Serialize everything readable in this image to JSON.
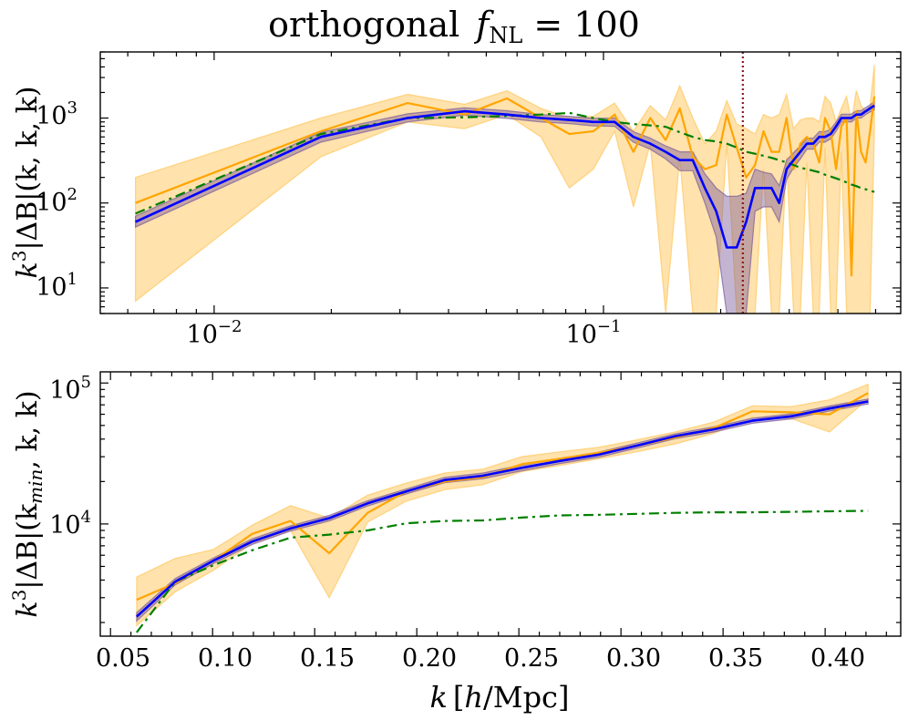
{
  "figure": {
    "title": "orthogonal",
    "title_symbol": "f",
    "title_sub": "NL",
    "title_rhs": " = 100"
  },
  "colors": {
    "measurement": "#ffa500",
    "measurement_band": "#ffc65a",
    "model": "#0000ff",
    "model_band": "#7a5a9a",
    "theory": "#007f00",
    "kmax_marker": "#8b1a1a"
  },
  "chart_data": [
    {
      "type": "line",
      "panel": "top",
      "xscale": "log",
      "yscale": "log",
      "xlim": [
        0.0051,
        0.58
      ],
      "ylim": [
        5,
        6000
      ],
      "x_ticks": [
        {
          "label_base": "10",
          "label_exp": "−2",
          "value": 0.01
        },
        {
          "label_base": "10",
          "label_exp": "−1",
          "value": 0.1
        }
      ],
      "y_ticks": [
        {
          "label_base": "10",
          "label_exp": "1",
          "value": 10
        },
        {
          "label_base": "10",
          "label_exp": "2",
          "value": 100
        },
        {
          "label_base": "10",
          "label_exp": "3",
          "value": 1000
        }
      ],
      "ylabel": {
        "pre": "k",
        "pre_sup": "3",
        "body": "|ΔB|(k, k, k)"
      },
      "vline_x": 0.228,
      "x": [
        0.00628,
        0.0188,
        0.0314,
        0.044,
        0.0565,
        0.0691,
        0.0817,
        0.0942,
        0.1068,
        0.1194,
        0.1319,
        0.1445,
        0.1571,
        0.1696,
        0.1822,
        0.1948,
        0.2073,
        0.2199,
        0.2325,
        0.245,
        0.2576,
        0.2702,
        0.2827,
        0.2953,
        0.3079,
        0.3204,
        0.333,
        0.3456,
        0.3581,
        0.3707,
        0.3833,
        0.3958,
        0.4084,
        0.421,
        0.4335,
        0.4461,
        0.4587,
        0.4712,
        0.4838,
        0.4964
      ],
      "series": [
        {
          "name": "measurement",
          "values": [
            100,
            700,
            1500,
            1100,
            1700,
            1000,
            650,
            700,
            1100,
            400,
            1000,
            550,
            1300,
            350,
            250,
            280,
            1100,
            450,
            200,
            280,
            700,
            400,
            400,
            1000,
            250,
            500,
            600,
            500,
            300,
            1000,
            700,
            250,
            800,
            1000,
            14,
            1200,
            400,
            300,
            700,
            1800
          ],
          "lower": [
            7,
            350,
            900,
            750,
            1100,
            600,
            150,
            250,
            700,
            90,
            500,
            5,
            350,
            5,
            5,
            5,
            500,
            5,
            5,
            5,
            250,
            5,
            5,
            350,
            5,
            5,
            300,
            5,
            5,
            450,
            5,
            5,
            400,
            5,
            5,
            5,
            5,
            5,
            5,
            700
          ],
          "upper": [
            200,
            1000,
            1900,
            1450,
            2100,
            1300,
            1000,
            1050,
            1500,
            700,
            1400,
            950,
            2400,
            1000,
            500,
            700,
            1600,
            850,
            750,
            650,
            1100,
            1000,
            1100,
            1900,
            750,
            950,
            1000,
            1000,
            900,
            1800,
            1500,
            900,
            1300,
            1800,
            900,
            2100,
            1400,
            1200,
            1400,
            4200
          ]
        },
        {
          "name": "model",
          "values": [
            60,
            600,
            1000,
            1200,
            1100,
            1000,
            950,
            900,
            900,
            600,
            500,
            400,
            320,
            320,
            150,
            80,
            30,
            30,
            60,
            150,
            150,
            150,
            100,
            250,
            320,
            400,
            500,
            500,
            600,
            600,
            650,
            800,
            1000,
            1000,
            1000,
            1100,
            1100,
            1200,
            1300,
            1400
          ],
          "lower": [
            52,
            520,
            900,
            1080,
            990,
            900,
            860,
            810,
            800,
            520,
            430,
            330,
            240,
            240,
            100,
            40,
            5,
            5,
            5,
            80,
            90,
            90,
            60,
            190,
            260,
            330,
            430,
            430,
            520,
            520,
            570,
            700,
            900,
            900,
            900,
            1000,
            1000,
            1100,
            1180,
            1250
          ],
          "upper": [
            70,
            680,
            1120,
            1320,
            1220,
            1100,
            1050,
            990,
            1000,
            690,
            580,
            470,
            400,
            400,
            220,
            150,
            120,
            120,
            130,
            250,
            230,
            220,
            160,
            320,
            390,
            470,
            580,
            580,
            690,
            690,
            740,
            900,
            1110,
            1110,
            1110,
            1220,
            1220,
            1330,
            1430,
            1560
          ]
        },
        {
          "name": "theory",
          "values": [
            75,
            650,
            1000,
            1020,
            1060,
            1100,
            1150,
            1000,
            900,
            850,
            820,
            790,
            680,
            600,
            550,
            530,
            500,
            450,
            400,
            380,
            360,
            340,
            320,
            300,
            280,
            260,
            250,
            240,
            230,
            215,
            205,
            195,
            185,
            175,
            165,
            158,
            150,
            145,
            140,
            135
          ]
        }
      ]
    },
    {
      "type": "line",
      "panel": "bottom",
      "xscale": "linear",
      "yscale": "log",
      "xlim": [
        0.045,
        0.437
      ],
      "ylim": [
        1600,
        120000
      ],
      "x_ticks": [
        "0.05",
        "0.10",
        "0.15",
        "0.20",
        "0.25",
        "0.30",
        "0.35",
        "0.40"
      ],
      "y_ticks": [
        {
          "label_base": "10",
          "label_exp": "4",
          "value": 10000
        },
        {
          "label_base": "10",
          "label_exp": "5",
          "value": 100000
        }
      ],
      "xlabel": {
        "var": "k",
        "unit_h": "h",
        "unit_rest": "/Mpc"
      },
      "ylabel": {
        "pre": "k",
        "pre_sup": "3",
        "body": "|ΔB|(k",
        "sub": "min",
        "post": ", k, k)"
      },
      "x": [
        0.0628,
        0.0817,
        0.1005,
        0.1194,
        0.1382,
        0.1571,
        0.1759,
        0.1948,
        0.2136,
        0.2325,
        0.2513,
        0.2702,
        0.289,
        0.3079,
        0.3267,
        0.3456,
        0.3644,
        0.3833,
        0.4021,
        0.421
      ],
      "series": [
        {
          "name": "measurement",
          "values": [
            2900,
            3800,
            5500,
            8500,
            10500,
            6200,
            12000,
            17000,
            20000,
            21500,
            26500,
            29000,
            32000,
            36000,
            41000,
            48000,
            63000,
            62000,
            60000,
            85000
          ],
          "lower": [
            1900,
            3300,
            4700,
            7300,
            9000,
            3000,
            10300,
            14500,
            17500,
            19000,
            23500,
            26000,
            29000,
            32500,
            37000,
            44000,
            57000,
            56000,
            45000,
            77000
          ],
          "upper": [
            4200,
            5700,
            6600,
            9800,
            13500,
            11000,
            16000,
            19500,
            23000,
            24500,
            30000,
            32500,
            35000,
            39500,
            45000,
            53000,
            69000,
            68000,
            76000,
            98000
          ]
        },
        {
          "name": "model",
          "values": [
            2200,
            3900,
            5500,
            7500,
            9300,
            11000,
            14000,
            17000,
            20500,
            22000,
            25000,
            28000,
            31000,
            36000,
            42000,
            47000,
            54000,
            58000,
            66000,
            74000
          ],
          "lower": [
            2050,
            3700,
            5250,
            7150,
            8900,
            10500,
            13400,
            16300,
            19600,
            21000,
            23800,
            26800,
            29700,
            34500,
            40300,
            45000,
            51800,
            55600,
            63300,
            71000
          ],
          "upper": [
            2350,
            4100,
            5750,
            7850,
            9700,
            11500,
            14600,
            17700,
            21400,
            23000,
            26200,
            29200,
            32300,
            37500,
            43700,
            49000,
            56200,
            60400,
            68700,
            77000
          ]
        },
        {
          "name": "theory",
          "values": [
            1700,
            3900,
            5100,
            6500,
            8000,
            8400,
            9000,
            10100,
            10500,
            10600,
            11100,
            11500,
            11600,
            11800,
            12000,
            12100,
            12100,
            12200,
            12300,
            12400
          ]
        }
      ]
    }
  ]
}
